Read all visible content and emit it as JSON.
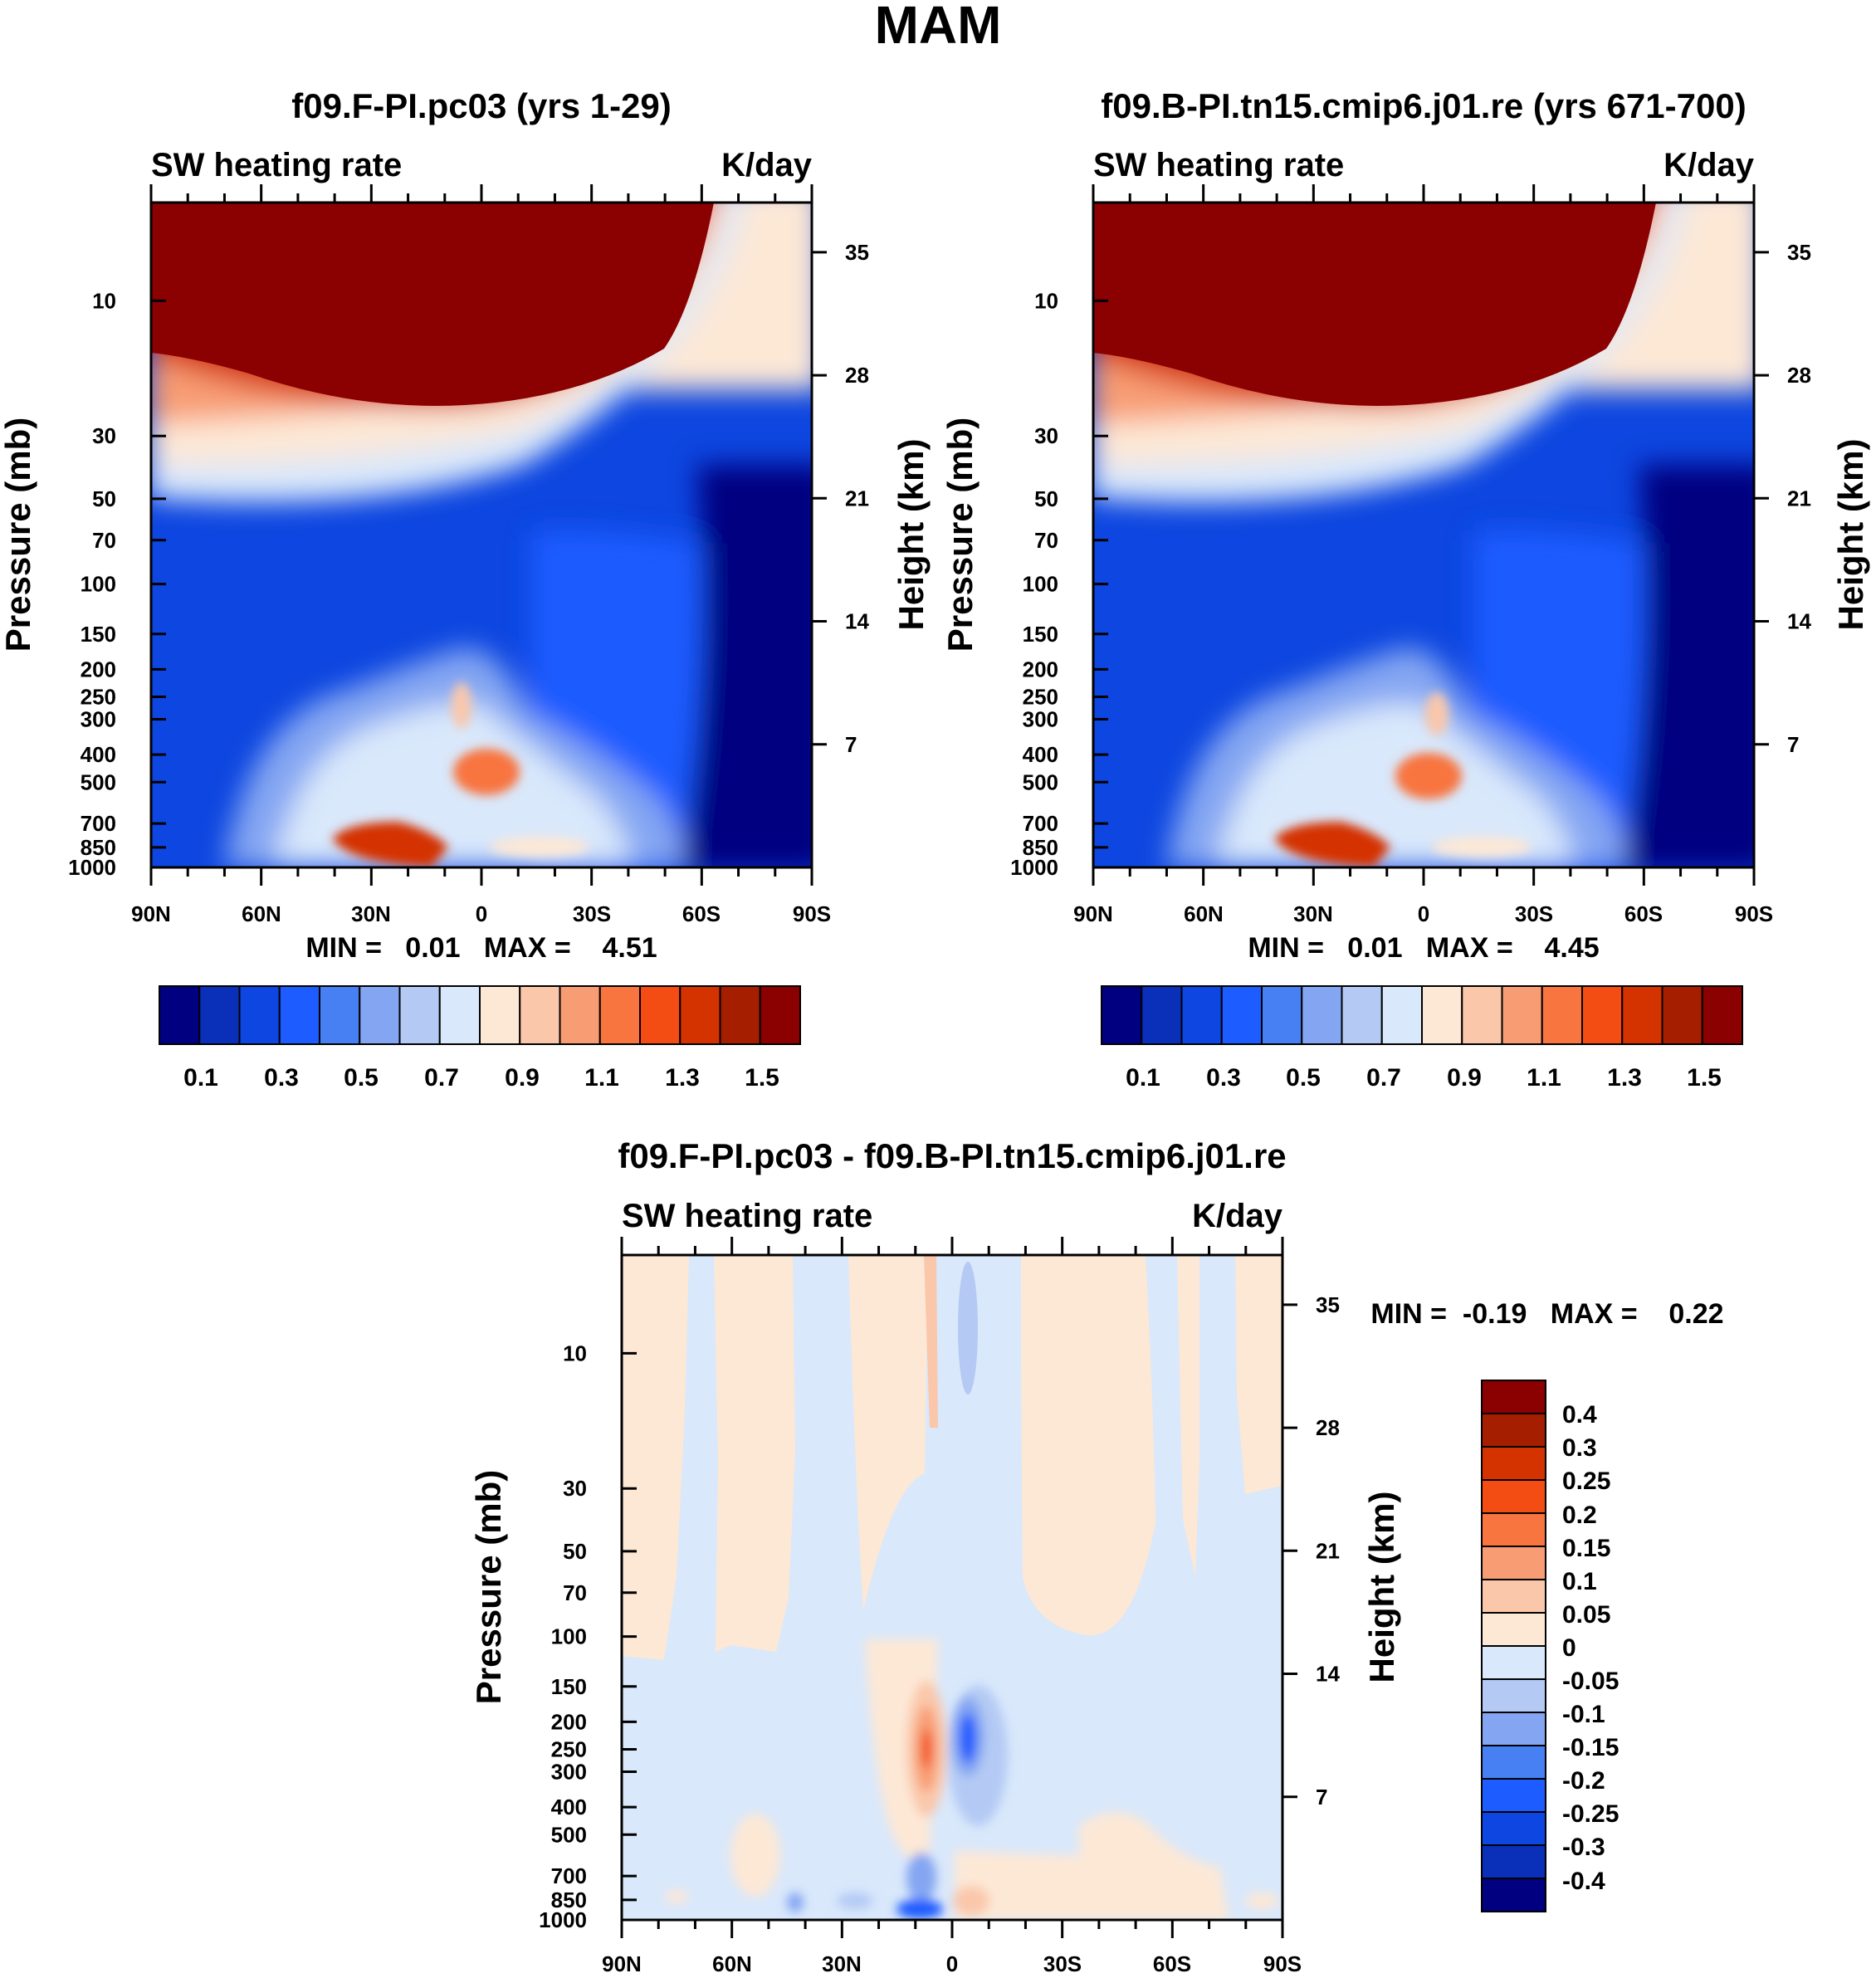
{
  "suptitle": "MAM",
  "colors": {
    "heating_levels": [
      "#000080",
      "#0a2fb8",
      "#0d46e0",
      "#1d5cff",
      "#4680f2",
      "#84a6f2",
      "#b4caf4",
      "#d9e8fb",
      "#fde8d6",
      "#fac7aa",
      "#f89d73",
      "#f8753f",
      "#f34d13",
      "#d43300",
      "#a61e00",
      "#8b0000"
    ],
    "diff_levels": [
      "#000080",
      "#0a2fb8",
      "#0d46e0",
      "#1d5cff",
      "#4680f2",
      "#84a6f2",
      "#b4caf4",
      "#d9e8fb",
      "#fde8d6",
      "#fac7aa",
      "#f89d73",
      "#f8753f",
      "#f34d13",
      "#d43300",
      "#a61e00",
      "#8b0000"
    ]
  },
  "chart_data": [
    {
      "type": "heatmap",
      "title": "f09.F-PI.pc03 (yrs 1-29)",
      "left_subtitle": "SW heating rate",
      "right_subtitle": "K/day",
      "ylabel": "Pressure (mb)",
      "y2label": "Height (km)",
      "x_ticks": [
        "90N",
        "60N",
        "30N",
        "0",
        "30S",
        "60S",
        "90S"
      ],
      "y_ticks": [
        "10",
        "30",
        "50",
        "70",
        "100",
        "150",
        "200",
        "250",
        "300",
        "400",
        "500",
        "700",
        "850",
        "1000"
      ],
      "y_tick_values": [
        10,
        30,
        50,
        70,
        100,
        150,
        200,
        250,
        300,
        400,
        500,
        700,
        850,
        1000
      ],
      "y2_ticks": [
        "35",
        "28",
        "21",
        "14",
        "7"
      ],
      "y2_tick_values": [
        35,
        28,
        21,
        14,
        7
      ],
      "ylim": [
        4.5,
        1000
      ],
      "stats": "MIN =   0.01   MAX =    4.51",
      "colorbar_labels": [
        "0.1",
        "0.3",
        "0.5",
        "0.7",
        "0.9",
        "1.1",
        "1.3",
        "1.5"
      ],
      "contour_levels": [
        0.1,
        0.2,
        0.3,
        0.4,
        0.5,
        0.6,
        0.7,
        0.8,
        0.9,
        1.0,
        1.1,
        1.2,
        1.3,
        1.4,
        1.5
      ],
      "min": 0.01,
      "max": 4.51
    },
    {
      "type": "heatmap",
      "title": "f09.B-PI.tn15.cmip6.j01.re (yrs 671-700)",
      "left_subtitle": "SW heating rate",
      "right_subtitle": "K/day",
      "ylabel": "Pressure (mb)",
      "y2label": "Height (km)",
      "x_ticks": [
        "90N",
        "60N",
        "30N",
        "0",
        "30S",
        "60S",
        "90S"
      ],
      "y_ticks": [
        "10",
        "30",
        "50",
        "70",
        "100",
        "150",
        "200",
        "250",
        "300",
        "400",
        "500",
        "700",
        "850",
        "1000"
      ],
      "y_tick_values": [
        10,
        30,
        50,
        70,
        100,
        150,
        200,
        250,
        300,
        400,
        500,
        700,
        850,
        1000
      ],
      "y2_ticks": [
        "35",
        "28",
        "21",
        "14",
        "7"
      ],
      "y2_tick_values": [
        35,
        28,
        21,
        14,
        7
      ],
      "ylim": [
        4.5,
        1000
      ],
      "stats": "MIN =   0.01   MAX =    4.45",
      "colorbar_labels": [
        "0.1",
        "0.3",
        "0.5",
        "0.7",
        "0.9",
        "1.1",
        "1.3",
        "1.5"
      ],
      "contour_levels": [
        0.1,
        0.2,
        0.3,
        0.4,
        0.5,
        0.6,
        0.7,
        0.8,
        0.9,
        1.0,
        1.1,
        1.2,
        1.3,
        1.4,
        1.5
      ],
      "min": 0.01,
      "max": 4.45
    },
    {
      "type": "heatmap",
      "title": "f09.F-PI.pc03 - f09.B-PI.tn15.cmip6.j01.re",
      "left_subtitle": "SW heating rate",
      "right_subtitle": "K/day",
      "ylabel": "Pressure (mb)",
      "y2label": "Height (km)",
      "x_ticks": [
        "90N",
        "60N",
        "30N",
        "0",
        "30S",
        "60S",
        "90S"
      ],
      "y_ticks": [
        "10",
        "30",
        "50",
        "70",
        "100",
        "150",
        "200",
        "250",
        "300",
        "400",
        "500",
        "700",
        "850",
        "1000"
      ],
      "y_tick_values": [
        10,
        30,
        50,
        70,
        100,
        150,
        200,
        250,
        300,
        400,
        500,
        700,
        850,
        1000
      ],
      "y2_ticks": [
        "35",
        "28",
        "21",
        "14",
        "7"
      ],
      "y2_tick_values": [
        35,
        28,
        21,
        14,
        7
      ],
      "ylim": [
        4.5,
        1000
      ],
      "stats": "MIN =  -0.19   MAX =    0.22",
      "colorbar_labels": [
        "0.4",
        "0.3",
        "0.25",
        "0.2",
        "0.15",
        "0.1",
        "0.05",
        "0",
        "-0.05",
        "-0.1",
        "-0.15",
        "-0.2",
        "-0.25",
        "-0.3",
        "-0.4"
      ],
      "contour_levels": [
        -0.4,
        -0.3,
        -0.25,
        -0.2,
        -0.15,
        -0.1,
        -0.05,
        0,
        0.05,
        0.1,
        0.15,
        0.2,
        0.25,
        0.3,
        0.4
      ],
      "min": -0.19,
      "max": 0.22
    }
  ]
}
